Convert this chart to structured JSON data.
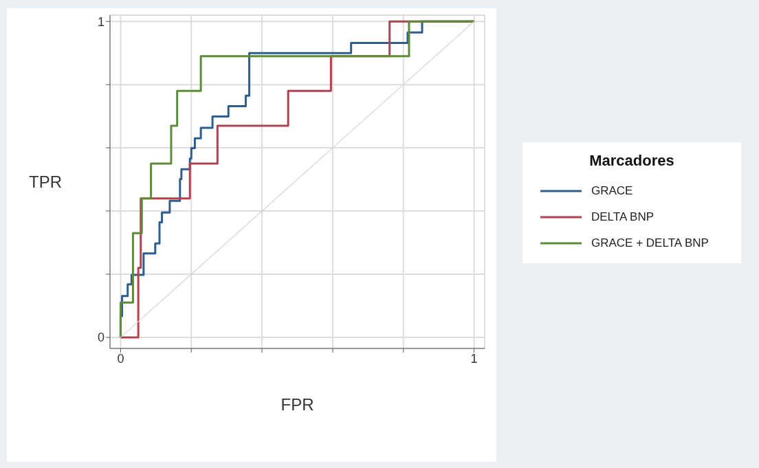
{
  "chart_data": {
    "type": "step",
    "xlabel": "FPR",
    "ylabel": "TPR",
    "legend_title": "Marcadores",
    "legend": "right",
    "grid": true,
    "xlim": [
      -0.03,
      1.03
    ],
    "ylim": [
      -0.035,
      1.02
    ],
    "xticks": [
      0,
      {
        "value": 0.2,
        "label": null
      },
      {
        "value": 0.4,
        "label": null
      },
      {
        "value": 0.6,
        "label": null
      },
      {
        "value": 0.8,
        "label": null
      },
      1
    ],
    "yticks": [
      0,
      {
        "value": 0.2,
        "label": null
      },
      {
        "value": 0.4,
        "label": null
      },
      {
        "value": 0.6,
        "label": null
      },
      {
        "value": 0.8,
        "label": null
      },
      1
    ],
    "series": [
      {
        "name": "GRACE",
        "color": "#2e5d8e",
        "x": [
          0,
          0,
          0.004,
          0.02,
          0.031,
          0.065,
          0.098,
          0.11,
          0.117,
          0.139,
          0.168,
          0.172,
          0.196,
          0.2,
          0.21,
          0.227,
          0.26,
          0.305,
          0.354,
          0.364,
          0.652,
          0.812,
          0.853,
          1
        ],
        "values": [
          0,
          0.067,
          0.131,
          0.168,
          0.198,
          0.266,
          0.297,
          0.364,
          0.395,
          0.432,
          0.501,
          0.532,
          0.566,
          0.599,
          0.63,
          0.663,
          0.699,
          0.732,
          0.765,
          0.9,
          0.932,
          0.965,
          1,
          1
        ]
      },
      {
        "name": "DELTA BNP",
        "color": "#b0424f",
        "x": [
          0,
          0.05,
          0.057,
          0.196,
          0.274,
          0.474,
          0.595,
          0.761,
          1
        ],
        "values": [
          0,
          0.22,
          0.44,
          0.55,
          0.67,
          0.78,
          0.89,
          1,
          1
        ]
      },
      {
        "name": "GRACE + DELTA BNP",
        "color": "#5e8a3a",
        "x": [
          0,
          0,
          0.035,
          0.06,
          0.086,
          0.143,
          0.16,
          0.227,
          0.816,
          1
        ],
        "values": [
          0,
          0.11,
          0.33,
          0.44,
          0.55,
          0.67,
          0.78,
          0.89,
          1,
          1
        ]
      },
      {
        "type": "line",
        "color": "#d4d4d4",
        "x": [
          0,
          1
        ],
        "values": [
          0,
          1
        ]
      }
    ]
  }
}
